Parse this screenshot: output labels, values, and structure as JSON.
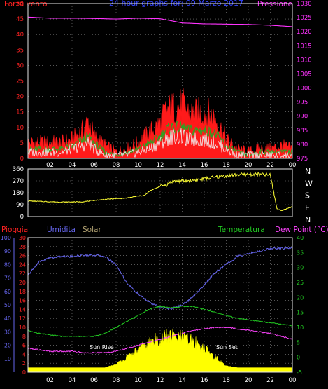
{
  "title": "24 hour graphs for: 09 Marzo 2017",
  "colors": {
    "background": "#000000",
    "frame": "#e6e6e6",
    "grid": "#8a8a8a",
    "wind_gust": "#ff1a1a",
    "wind_avg": "#22aa22",
    "wind_speed": "#f0f0f0",
    "pressure": "#ff33ff",
    "direction": "#ffff33",
    "humidity": "#6666ee",
    "rain": "#e01111",
    "solar": "#ffff00",
    "temperature": "#22cc22",
    "dew_point": "#ff44ff",
    "title": "#3344ff"
  },
  "x_ticks": [
    "02",
    "04",
    "06",
    "08",
    "10",
    "12",
    "14",
    "16",
    "18",
    "20",
    "22",
    "00"
  ],
  "chart_data": [
    {
      "type": "line",
      "name": "wind-pressure",
      "left_label": "Forza vento",
      "right_label": "Pressione",
      "left_ticks": [
        "0",
        "5",
        "10",
        "15",
        "20",
        "25",
        "30",
        "35",
        "40",
        "45",
        "50"
      ],
      "right_ticks": [
        "975",
        "980",
        "985",
        "990",
        "995",
        "1000",
        "1005",
        "1010",
        "1015",
        "1020",
        "1025",
        "1030"
      ],
      "ylim_left": [
        0,
        50
      ],
      "ylim_right": [
        975,
        1030
      ],
      "x": [
        0,
        1,
        2,
        3,
        4,
        5,
        5.5,
        6,
        7,
        8,
        9,
        10,
        11,
        12,
        12.5,
        13,
        14,
        14.5,
        15,
        16,
        17,
        18,
        19,
        20,
        21,
        22,
        23,
        24
      ],
      "gust": [
        5,
        5,
        5,
        5,
        6,
        9,
        12,
        7,
        4,
        2,
        3,
        5,
        8,
        11,
        15,
        16,
        17,
        15,
        14,
        15,
        13,
        6,
        3,
        2,
        3,
        3,
        4,
        3
      ],
      "avg": [
        3,
        3,
        3,
        3,
        4,
        6,
        7,
        5,
        2,
        1,
        2,
        3,
        5,
        7,
        9,
        10,
        10,
        9,
        9,
        9,
        8,
        4,
        2,
        1,
        2,
        2,
        2,
        2
      ],
      "speed": [
        2,
        2,
        2,
        2,
        3,
        4,
        5,
        3,
        1,
        1,
        1,
        2,
        3,
        5,
        6,
        7,
        7,
        6,
        6,
        6,
        5,
        3,
        1,
        1,
        1,
        1,
        1,
        1
      ],
      "pressure_x": [
        0,
        2,
        4,
        6,
        8,
        10,
        12,
        13,
        14,
        16,
        18,
        20,
        22,
        24
      ],
      "pressure": [
        1025.2,
        1024.8,
        1024.8,
        1024.7,
        1024.5,
        1024.8,
        1024.6,
        1023.9,
        1023.1,
        1022.8,
        1022.7,
        1022.6,
        1022.3,
        1021.8
      ]
    },
    {
      "type": "line",
      "name": "wind-direction",
      "left_ticks": [
        "0",
        "90",
        "180",
        "270",
        "360"
      ],
      "right_ticks": [
        "N",
        "W",
        "S",
        "E",
        "N"
      ],
      "ylim": [
        0,
        360
      ],
      "x": [
        0,
        1,
        2,
        3,
        4,
        5,
        6,
        7,
        8,
        9,
        10,
        10.6,
        11,
        12,
        12.6,
        13,
        14,
        15,
        16,
        17,
        18,
        19,
        20,
        21,
        22,
        22.6,
        23,
        24
      ],
      "direction": [
        118,
        115,
        112,
        110,
        110,
        112,
        122,
        130,
        135,
        140,
        155,
        160,
        190,
        230,
        240,
        265,
        268,
        275,
        285,
        298,
        308,
        315,
        320,
        318,
        314,
        60,
        45,
        75
      ]
    },
    {
      "type": "area",
      "name": "humidity-rain-solar-temperature-dew",
      "labels": [
        "Pioggia",
        "Umidita",
        "Solar",
        "Temperatura",
        "Dew Point (°C)"
      ],
      "humidity_ticks": [
        "10",
        "20",
        "30",
        "40",
        "50",
        "60",
        "70",
        "80",
        "90",
        "100"
      ],
      "rain_ticks": [
        "0",
        "2",
        "4",
        "6",
        "8",
        "10",
        "12",
        "14",
        "16",
        "18",
        "20",
        "22",
        "24",
        "26",
        "28",
        "30"
      ],
      "temp_ticks": [
        "-5",
        "0",
        "5",
        "10",
        "15",
        "20",
        "25",
        "30",
        "35",
        "40"
      ],
      "humidity_lim": [
        0,
        100
      ],
      "rain_lim": [
        0,
        30
      ],
      "temp_lim": [
        -5,
        40
      ],
      "x": [
        0,
        1,
        2,
        3,
        4,
        5,
        6,
        7,
        8,
        9,
        10,
        11,
        12,
        13,
        14,
        15,
        16,
        17,
        18,
        19,
        20,
        21,
        22,
        23,
        24
      ],
      "humidity": [
        72,
        82,
        85,
        86,
        86,
        87,
        87,
        86,
        80,
        66,
        58,
        52,
        48,
        47,
        50,
        56,
        65,
        74,
        80,
        86,
        88,
        90,
        92,
        92,
        92
      ],
      "rain": [
        1,
        1,
        1,
        1,
        1,
        1,
        1,
        1,
        1,
        1,
        1,
        1,
        1,
        1,
        1,
        1,
        1,
        1,
        1,
        1,
        1,
        1,
        1,
        1,
        1
      ],
      "solar": [
        0,
        0,
        0,
        0,
        0,
        0,
        0,
        0,
        1,
        3,
        5,
        7,
        8.5,
        9,
        8.5,
        7.5,
        5.5,
        3,
        0.5,
        0,
        0,
        0,
        0,
        0,
        0
      ],
      "temperature": [
        9,
        8,
        7.5,
        7,
        7,
        7,
        7,
        8,
        10,
        12,
        14,
        16,
        17,
        16.5,
        17,
        17,
        16,
        15,
        14,
        13,
        12.5,
        12,
        11.5,
        11,
        10.5
      ],
      "dew_point": [
        3,
        2.5,
        2,
        2,
        2,
        1.5,
        1.5,
        1.5,
        2,
        3,
        4,
        5,
        6,
        7,
        8,
        9,
        9.5,
        10,
        10,
        9.5,
        9,
        8.5,
        8,
        7,
        6
      ],
      "annotations": [
        "Sun Rise",
        "Sun Set"
      ]
    }
  ]
}
